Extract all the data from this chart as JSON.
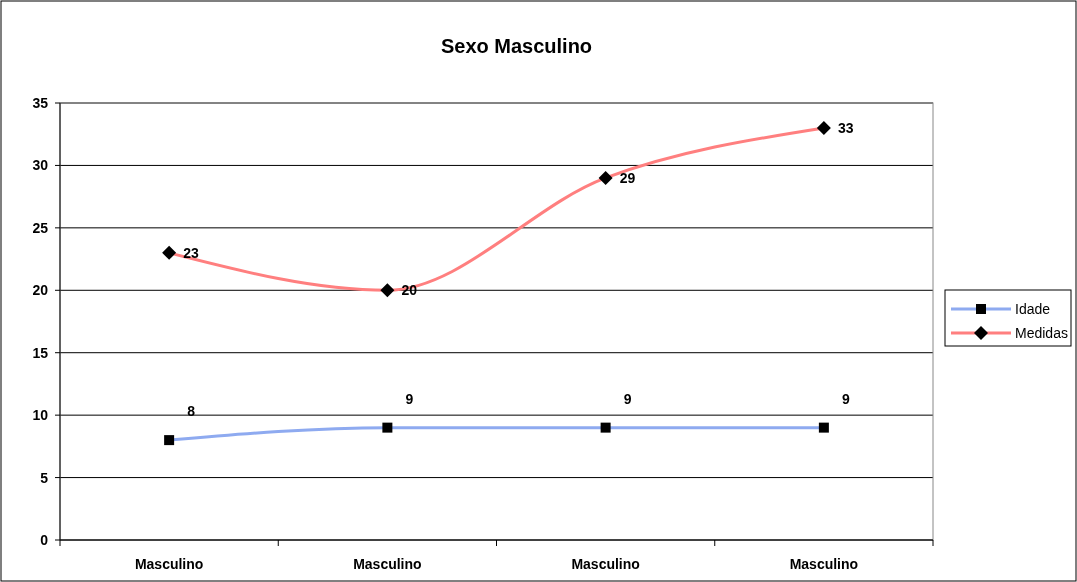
{
  "chart_data": {
    "type": "line",
    "title": "Sexo Masculino",
    "categories": [
      "Masculino",
      "Masculino",
      "Masculino",
      "Masculino"
    ],
    "series": [
      {
        "name": "Idade",
        "color": "#8eaaf0",
        "values": [
          8,
          9,
          9,
          9
        ],
        "marker": "square"
      },
      {
        "name": "Medidas",
        "color": "#ff7f7f",
        "values": [
          23,
          20,
          29,
          33
        ],
        "marker": "diamond"
      }
    ],
    "ylim": [
      0,
      35
    ],
    "yticks": [
      0,
      5,
      10,
      15,
      20,
      25,
      30,
      35
    ],
    "grid": "y",
    "legend": "right",
    "data_labels": true
  }
}
